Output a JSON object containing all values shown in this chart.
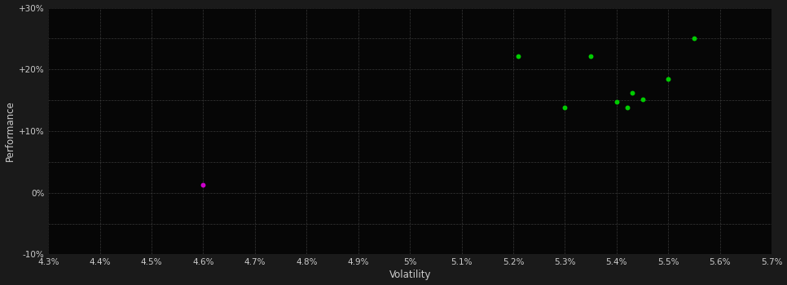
{
  "background_color": "#1a1a1a",
  "plot_bg_color": "#060606",
  "grid_color": "#444444",
  "text_color": "#cccccc",
  "xlabel": "Volatility",
  "ylabel": "Performance",
  "xlim": [
    0.043,
    0.057
  ],
  "ylim": [
    -0.1,
    0.3
  ],
  "xticks": [
    0.043,
    0.044,
    0.045,
    0.046,
    0.047,
    0.048,
    0.049,
    0.05,
    0.051,
    0.052,
    0.053,
    0.054,
    0.055,
    0.056,
    0.057
  ],
  "yticks": [
    -0.1,
    0.0,
    0.1,
    0.2,
    0.3
  ],
  "ytick_extra": [
    -0.05,
    0.05,
    0.15,
    0.25
  ],
  "green_points": [
    [
      0.0521,
      0.222
    ],
    [
      0.053,
      0.138
    ],
    [
      0.0535,
      0.222
    ],
    [
      0.054,
      0.148
    ],
    [
      0.0542,
      0.138
    ],
    [
      0.0543,
      0.162
    ],
    [
      0.0545,
      0.152
    ],
    [
      0.055,
      0.185
    ],
    [
      0.0555,
      0.25
    ]
  ],
  "magenta_points": [
    [
      0.046,
      0.013
    ]
  ],
  "green_color": "#00cc00",
  "magenta_color": "#cc00cc",
  "point_size": 18,
  "figsize": [
    9.66,
    3.5
  ],
  "dpi": 100
}
